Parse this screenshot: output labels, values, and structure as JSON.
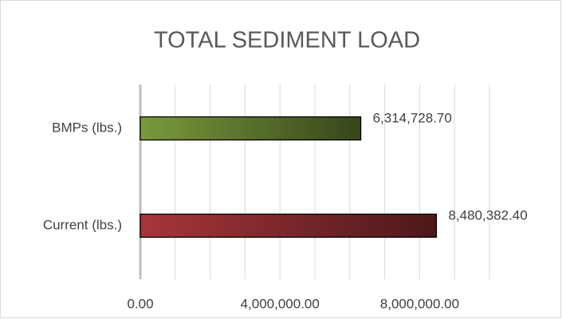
{
  "chart_data": {
    "type": "bar",
    "orientation": "horizontal",
    "title": "TOTAL SEDIMENT LOAD",
    "categories": [
      "BMPs (lbs.)",
      "Current (lbs.)"
    ],
    "values": [
      6314728.7,
      8480382.4
    ],
    "value_labels": [
      "6,314,728.70",
      "8,480,382.40"
    ],
    "colors": [
      "#7a9a3c",
      "#a8353a"
    ],
    "xlim": [
      0,
      10000000
    ],
    "xticks": [
      {
        "value": 0,
        "label": "0.00"
      },
      {
        "value": 4000000,
        "label": "4,000,000.00"
      },
      {
        "value": 8000000,
        "label": "8,000,000.00"
      }
    ],
    "xgrid": [
      0,
      1000000,
      2000000,
      3000000,
      4000000,
      5000000,
      6000000,
      7000000,
      8000000,
      9000000,
      10000000
    ],
    "grid": true
  }
}
